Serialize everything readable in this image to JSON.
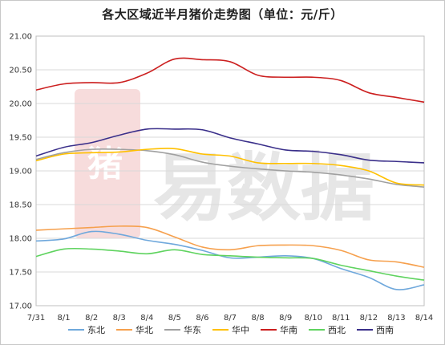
{
  "chart_data": {
    "type": "line",
    "title": "各大区域近半月猪价走势图（单位：元/斤）",
    "xlabel": "",
    "ylabel": "",
    "ylim": [
      17.0,
      21.0
    ],
    "yticks": [
      "17.00",
      "17.50",
      "18.00",
      "18.50",
      "19.00",
      "19.50",
      "20.00",
      "20.50",
      "21.00"
    ],
    "categories": [
      "7/31",
      "8/1",
      "8/2",
      "8/3",
      "8/4",
      "8/5",
      "8/6",
      "8/7",
      "8/8",
      "8/9",
      "8/10",
      "8/11",
      "8/12",
      "8/13",
      "8/14"
    ],
    "grid": true,
    "legend_position": "bottom",
    "watermark": "猪易数据",
    "series": [
      {
        "name": "东北",
        "color": "#6fa8dc",
        "values": [
          17.96,
          17.99,
          18.1,
          18.06,
          17.97,
          17.91,
          17.82,
          17.71,
          17.72,
          17.74,
          17.7,
          17.55,
          17.42,
          17.24,
          17.31
        ]
      },
      {
        "name": "华北",
        "color": "#f6a04d",
        "values": [
          18.12,
          18.14,
          18.16,
          18.18,
          18.16,
          18.02,
          17.87,
          17.83,
          17.89,
          17.9,
          17.89,
          17.82,
          17.68,
          17.65,
          17.57
        ]
      },
      {
        "name": "华东",
        "color": "#a0a0a0",
        "values": [
          19.17,
          19.27,
          19.32,
          19.32,
          19.3,
          19.24,
          19.13,
          19.07,
          19.03,
          19.0,
          18.98,
          18.94,
          18.88,
          18.8,
          18.76
        ]
      },
      {
        "name": "华中",
        "color": "#ffc000",
        "values": [
          19.15,
          19.25,
          19.27,
          19.28,
          19.32,
          19.33,
          19.25,
          19.22,
          19.12,
          19.11,
          19.11,
          19.08,
          19.0,
          18.82,
          18.79
        ]
      },
      {
        "name": "华南",
        "color": "#cc1f1f",
        "values": [
          20.2,
          20.29,
          20.31,
          20.31,
          20.45,
          20.66,
          20.65,
          20.62,
          20.42,
          20.39,
          20.39,
          20.34,
          20.16,
          20.09,
          20.02
        ]
      },
      {
        "name": "西北",
        "color": "#5fd35f",
        "values": [
          17.73,
          17.84,
          17.84,
          17.81,
          17.77,
          17.83,
          17.76,
          17.74,
          17.72,
          17.71,
          17.7,
          17.6,
          17.52,
          17.44,
          17.38
        ]
      },
      {
        "name": "西南",
        "color": "#3a2f8a",
        "values": [
          19.22,
          19.35,
          19.42,
          19.53,
          19.62,
          19.62,
          19.61,
          19.49,
          19.4,
          19.31,
          19.29,
          19.24,
          19.16,
          19.14,
          19.12
        ]
      }
    ]
  }
}
